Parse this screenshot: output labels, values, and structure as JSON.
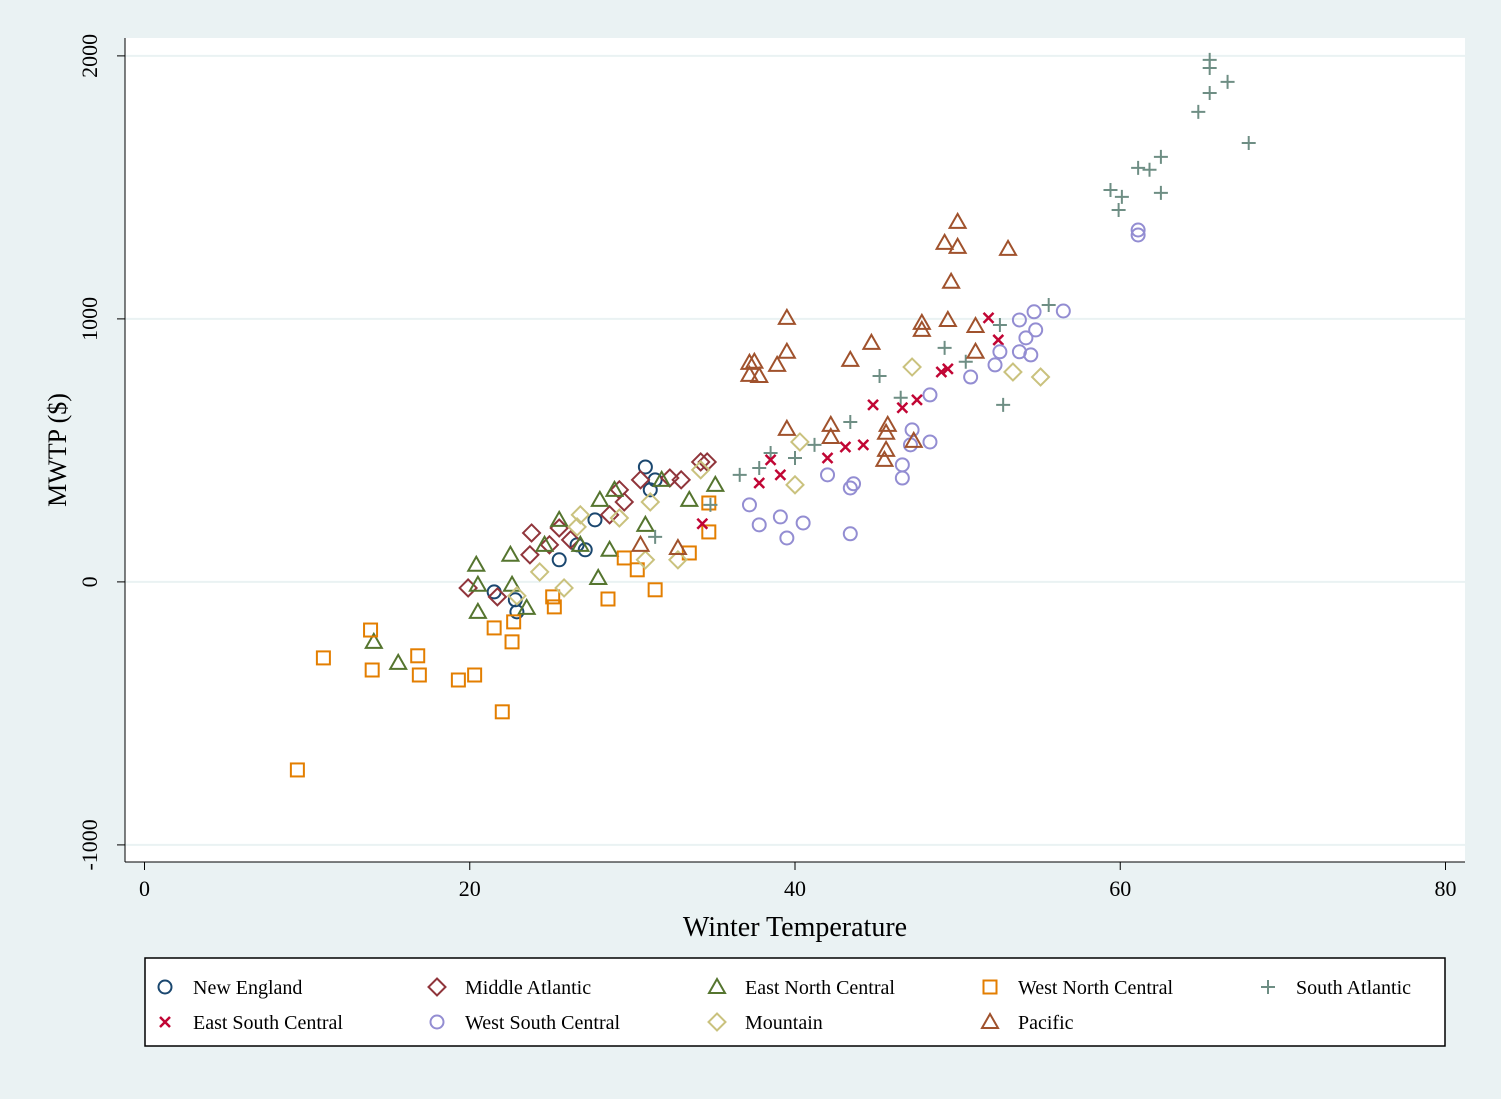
{
  "chart_data": {
    "type": "scatter",
    "xlabel": "Winter Temperature",
    "ylabel": "MWTP ($)",
    "xlim": [
      -1.2,
      81.2
    ],
    "ylim": [
      -1065,
      2068
    ],
    "xticks": [
      0,
      20,
      40,
      60,
      80
    ],
    "yticks": [
      -1000,
      0,
      1000,
      2000
    ],
    "grid": true,
    "legend": "bottom",
    "series": [
      {
        "name": "New England",
        "color": "#1a476f",
        "marker": "circle",
        "x": [
          30.8,
          31.4,
          27.7,
          25.5,
          26.6,
          21.5,
          22.8,
          22.9,
          31.1,
          27.1
        ],
        "values": [
          437,
          388,
          236,
          84,
          141,
          -38,
          -68,
          -114,
          350,
          122
        ]
      },
      {
        "name": "Middle Atlantic",
        "color": "#90353b",
        "marker": "diamond",
        "x": [
          23.8,
          23.7,
          19.9,
          21.7,
          24.9,
          25.5,
          29.2,
          29.5,
          30.5,
          32.3,
          34.2,
          34.6,
          33.0,
          28.6,
          26.2
        ],
        "values": [
          186,
          103,
          -23,
          -57,
          141,
          205,
          350,
          304,
          388,
          395,
          456,
          456,
          388,
          255,
          160
        ]
      },
      {
        "name": "East North Central",
        "color": "#55752f",
        "marker": "triangle",
        "x": [
          20.4,
          20.5,
          20.5,
          22.5,
          22.6,
          23.5,
          14.1,
          15.6,
          27.9,
          25.5,
          28.0,
          28.9,
          30.8,
          31.8,
          33.5,
          35.1,
          26.8,
          24.6,
          28.6
        ],
        "values": [
          65,
          -114,
          -11,
          103,
          -11,
          -99,
          -228,
          -308,
          15,
          236,
          312,
          350,
          217,
          388,
          312,
          369,
          141,
          141,
          122
        ]
      },
      {
        "name": "West North Central",
        "color": "#e37e00",
        "marker": "square",
        "x": [
          9.4,
          11.0,
          13.9,
          14.0,
          16.8,
          16.9,
          19.3,
          20.3,
          21.5,
          22.0,
          22.6,
          22.7,
          25.1,
          25.2,
          28.5,
          29.5,
          30.3,
          31.4,
          33.5,
          34.7,
          34.7
        ],
        "values": [
          -715,
          -289,
          -183,
          -335,
          -281,
          -354,
          -373,
          -354,
          -175,
          -494,
          -228,
          -152,
          -57,
          -95,
          -65,
          91,
          46,
          -30,
          110,
          300,
          190
        ]
      },
      {
        "name": "South Atlantic",
        "color": "#6e8e84",
        "marker": "plus",
        "x": [
          65.5,
          65.5,
          66.6,
          65.5,
          64.8,
          67.9,
          61.1,
          62.5,
          61.8,
          59.4,
          60.1,
          59.9,
          62.5,
          55.6,
          52.6,
          49.2,
          45.2,
          50.5,
          52.8,
          46.5,
          43.4,
          41.2,
          40.0,
          38.5,
          36.6,
          37.8,
          31.4,
          34.8
        ],
        "values": [
          1985,
          1954,
          1901,
          1859,
          1787,
          1669,
          1574,
          1616,
          1567,
          1490,
          1464,
          1414,
          1479,
          1053,
          977,
          890,
          783,
          837,
          673,
          700,
          608,
          521,
          471,
          490,
          407,
          433,
          171,
          293
        ]
      },
      {
        "name": "East South Central",
        "color": "#c10534",
        "marker": "x",
        "x": [
          51.9,
          52.5,
          49.0,
          49.4,
          47.5,
          46.6,
          44.8,
          44.2,
          43.1,
          42.0,
          38.5,
          39.1,
          37.8,
          34.3
        ],
        "values": [
          1004,
          920,
          798,
          810,
          692,
          662,
          673,
          521,
          513,
          471,
          464,
          407,
          376,
          221
        ]
      },
      {
        "name": "West South Central",
        "color": "#938dd2",
        "marker": "circle",
        "x": [
          56.5,
          54.7,
          53.8,
          54.8,
          54.2,
          53.8,
          54.5,
          52.6,
          52.3,
          50.8,
          61.1,
          61.1,
          48.3,
          48.3,
          47.2,
          47.1,
          46.6,
          46.6,
          43.4,
          43.6,
          42.0,
          43.4,
          40.5,
          39.1,
          39.5,
          37.8,
          37.2
        ],
        "values": [
          1030,
          1027,
          996,
          958,
          928,
          875,
          863,
          875,
          825,
          779,
          1338,
          1319,
          711,
          532,
          578,
          521,
          445,
          395,
          357,
          373,
          407,
          183,
          224,
          247,
          167,
          217,
          293
        ]
      },
      {
        "name": "Mountain",
        "color": "#cac27e",
        "marker": "diamond",
        "x": [
          47.2,
          53.4,
          55.1,
          40.3,
          40.0,
          32.8,
          30.8,
          31.1,
          29.2,
          26.8,
          26.6,
          25.8,
          24.3,
          22.9,
          34.2
        ],
        "values": [
          817,
          798,
          779,
          532,
          369,
          84,
          84,
          304,
          243,
          255,
          209,
          -23,
          38,
          -53,
          426
        ]
      },
      {
        "name": "Pacific",
        "color": "#a0522d",
        "marker": "triangle",
        "x": [
          50.0,
          49.2,
          50.0,
          53.1,
          49.6,
          39.5,
          49.4,
          47.8,
          47.8,
          51.1,
          51.1,
          39.5,
          37.2,
          37.5,
          37.2,
          37.8,
          38.9,
          43.4,
          44.7,
          39.5,
          42.2,
          42.2,
          45.7,
          45.6,
          45.6,
          45.5,
          47.3,
          32.8,
          30.5
        ],
        "values": [
          1369,
          1289,
          1274,
          1266,
          1141,
          1004,
          996,
          985,
          958,
          973,
          875,
          875,
          833,
          837,
          787,
          783,
          825,
          844,
          909,
          582,
          597,
          551,
          597,
          567,
          502,
          464,
          536,
          129,
          141
        ]
      }
    ]
  }
}
